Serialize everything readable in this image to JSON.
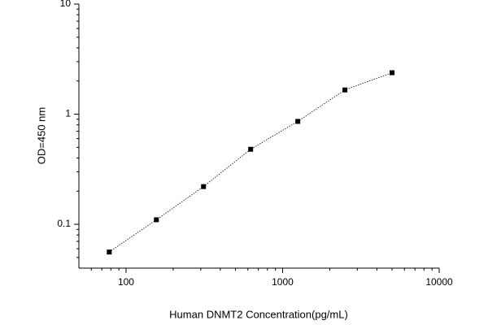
{
  "chart_data": {
    "type": "scatter-line",
    "x_label": "Human DNMT2 Concentration(pg/mL)",
    "y_label": "OD=450 nm",
    "x": [
      78.125,
      156.25,
      312.5,
      625,
      1250,
      2500,
      5000
    ],
    "series": [
      {
        "values": [
          0.056,
          0.11,
          0.22,
          0.48,
          0.86,
          1.66,
          2.38
        ],
        "color": "#000000"
      }
    ],
    "xscale": "log",
    "yscale": "log",
    "xlim": [
      50,
      10000
    ],
    "ylim": [
      0.04,
      10
    ],
    "xticks": [
      100,
      1000,
      10000
    ],
    "yticks": [
      0.1,
      1,
      10
    ],
    "xminor": [
      60,
      70,
      80,
      90,
      200,
      300,
      400,
      500,
      600,
      700,
      800,
      900,
      2000,
      3000,
      4000,
      5000,
      6000,
      7000,
      8000,
      9000
    ],
    "yminor": [
      0.05,
      0.06,
      0.07,
      0.08,
      0.09,
      0.2,
      0.3,
      0.4,
      0.5,
      0.6,
      0.7,
      0.8,
      0.9,
      2,
      3,
      4,
      5,
      6,
      7,
      8,
      9
    ]
  }
}
